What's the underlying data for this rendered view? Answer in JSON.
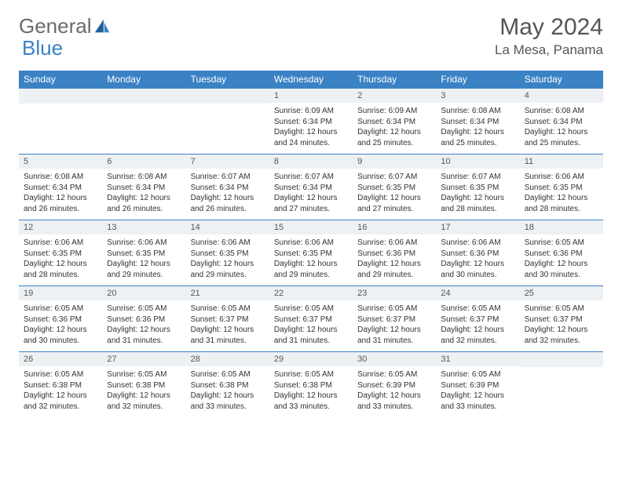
{
  "logo": {
    "text1": "General",
    "text2": "Blue"
  },
  "title": "May 2024",
  "location": "La Mesa, Panama",
  "colors": {
    "header_bg": "#3b82c4",
    "header_text": "#ffffff",
    "daynum_bg": "#eef1f4",
    "border": "#3b82c4",
    "body_text": "#333333",
    "title_text": "#555555"
  },
  "weekdays": [
    "Sunday",
    "Monday",
    "Tuesday",
    "Wednesday",
    "Thursday",
    "Friday",
    "Saturday"
  ],
  "weeks": [
    [
      null,
      null,
      null,
      {
        "n": "1",
        "sr": "6:09 AM",
        "ss": "6:34 PM",
        "dl": "12 hours and 24 minutes."
      },
      {
        "n": "2",
        "sr": "6:09 AM",
        "ss": "6:34 PM",
        "dl": "12 hours and 25 minutes."
      },
      {
        "n": "3",
        "sr": "6:08 AM",
        "ss": "6:34 PM",
        "dl": "12 hours and 25 minutes."
      },
      {
        "n": "4",
        "sr": "6:08 AM",
        "ss": "6:34 PM",
        "dl": "12 hours and 25 minutes."
      }
    ],
    [
      {
        "n": "5",
        "sr": "6:08 AM",
        "ss": "6:34 PM",
        "dl": "12 hours and 26 minutes."
      },
      {
        "n": "6",
        "sr": "6:08 AM",
        "ss": "6:34 PM",
        "dl": "12 hours and 26 minutes."
      },
      {
        "n": "7",
        "sr": "6:07 AM",
        "ss": "6:34 PM",
        "dl": "12 hours and 26 minutes."
      },
      {
        "n": "8",
        "sr": "6:07 AM",
        "ss": "6:34 PM",
        "dl": "12 hours and 27 minutes."
      },
      {
        "n": "9",
        "sr": "6:07 AM",
        "ss": "6:35 PM",
        "dl": "12 hours and 27 minutes."
      },
      {
        "n": "10",
        "sr": "6:07 AM",
        "ss": "6:35 PM",
        "dl": "12 hours and 28 minutes."
      },
      {
        "n": "11",
        "sr": "6:06 AM",
        "ss": "6:35 PM",
        "dl": "12 hours and 28 minutes."
      }
    ],
    [
      {
        "n": "12",
        "sr": "6:06 AM",
        "ss": "6:35 PM",
        "dl": "12 hours and 28 minutes."
      },
      {
        "n": "13",
        "sr": "6:06 AM",
        "ss": "6:35 PM",
        "dl": "12 hours and 29 minutes."
      },
      {
        "n": "14",
        "sr": "6:06 AM",
        "ss": "6:35 PM",
        "dl": "12 hours and 29 minutes."
      },
      {
        "n": "15",
        "sr": "6:06 AM",
        "ss": "6:35 PM",
        "dl": "12 hours and 29 minutes."
      },
      {
        "n": "16",
        "sr": "6:06 AM",
        "ss": "6:36 PM",
        "dl": "12 hours and 29 minutes."
      },
      {
        "n": "17",
        "sr": "6:06 AM",
        "ss": "6:36 PM",
        "dl": "12 hours and 30 minutes."
      },
      {
        "n": "18",
        "sr": "6:05 AM",
        "ss": "6:36 PM",
        "dl": "12 hours and 30 minutes."
      }
    ],
    [
      {
        "n": "19",
        "sr": "6:05 AM",
        "ss": "6:36 PM",
        "dl": "12 hours and 30 minutes."
      },
      {
        "n": "20",
        "sr": "6:05 AM",
        "ss": "6:36 PM",
        "dl": "12 hours and 31 minutes."
      },
      {
        "n": "21",
        "sr": "6:05 AM",
        "ss": "6:37 PM",
        "dl": "12 hours and 31 minutes."
      },
      {
        "n": "22",
        "sr": "6:05 AM",
        "ss": "6:37 PM",
        "dl": "12 hours and 31 minutes."
      },
      {
        "n": "23",
        "sr": "6:05 AM",
        "ss": "6:37 PM",
        "dl": "12 hours and 31 minutes."
      },
      {
        "n": "24",
        "sr": "6:05 AM",
        "ss": "6:37 PM",
        "dl": "12 hours and 32 minutes."
      },
      {
        "n": "25",
        "sr": "6:05 AM",
        "ss": "6:37 PM",
        "dl": "12 hours and 32 minutes."
      }
    ],
    [
      {
        "n": "26",
        "sr": "6:05 AM",
        "ss": "6:38 PM",
        "dl": "12 hours and 32 minutes."
      },
      {
        "n": "27",
        "sr": "6:05 AM",
        "ss": "6:38 PM",
        "dl": "12 hours and 32 minutes."
      },
      {
        "n": "28",
        "sr": "6:05 AM",
        "ss": "6:38 PM",
        "dl": "12 hours and 33 minutes."
      },
      {
        "n": "29",
        "sr": "6:05 AM",
        "ss": "6:38 PM",
        "dl": "12 hours and 33 minutes."
      },
      {
        "n": "30",
        "sr": "6:05 AM",
        "ss": "6:39 PM",
        "dl": "12 hours and 33 minutes."
      },
      {
        "n": "31",
        "sr": "6:05 AM",
        "ss": "6:39 PM",
        "dl": "12 hours and 33 minutes."
      },
      null
    ]
  ],
  "labels": {
    "sunrise": "Sunrise:",
    "sunset": "Sunset:",
    "daylight": "Daylight:"
  }
}
